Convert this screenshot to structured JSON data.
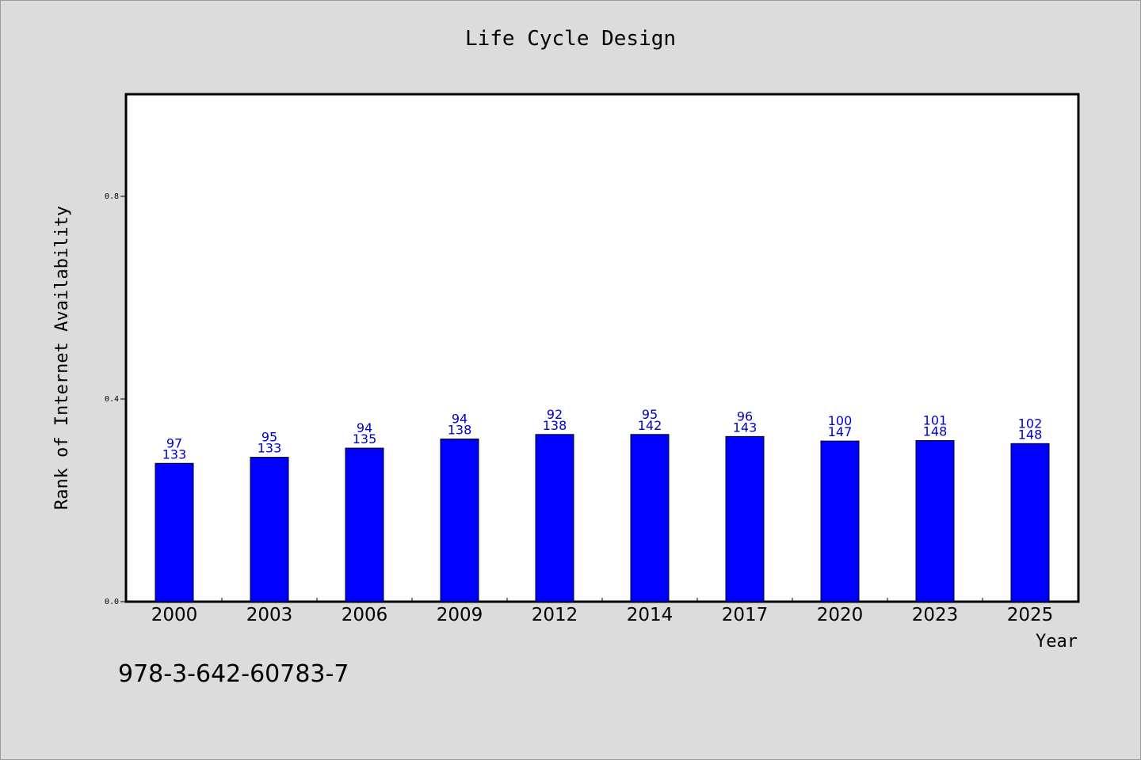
{
  "chart_data": {
    "type": "bar",
    "title": "Life Cycle Design",
    "xlabel": "Year",
    "ylabel": "Rank of Internet Availability",
    "ylim": [
      0,
      1.0
    ],
    "yticks": [
      "0.0",
      "0.4",
      "0.8"
    ],
    "grid": false,
    "categories": [
      "2000",
      "2003",
      "2006",
      "2009",
      "2012",
      "2014",
      "2017",
      "2020",
      "2023",
      "2025"
    ],
    "values": [
      0.273,
      0.285,
      0.303,
      0.321,
      0.33,
      0.33,
      0.326,
      0.317,
      0.318,
      0.312
    ],
    "labels_top": [
      "97",
      "95",
      "94",
      "94",
      "92",
      "95",
      "96",
      "100",
      "101",
      "102"
    ],
    "labels_bottom": [
      "133",
      "133",
      "135",
      "138",
      "138",
      "142",
      "143",
      "147",
      "148",
      "148"
    ],
    "bar_color": "#0000ff",
    "label_color": "#0000cc"
  },
  "footer": {
    "isbn": "978-3-642-60783-7"
  }
}
